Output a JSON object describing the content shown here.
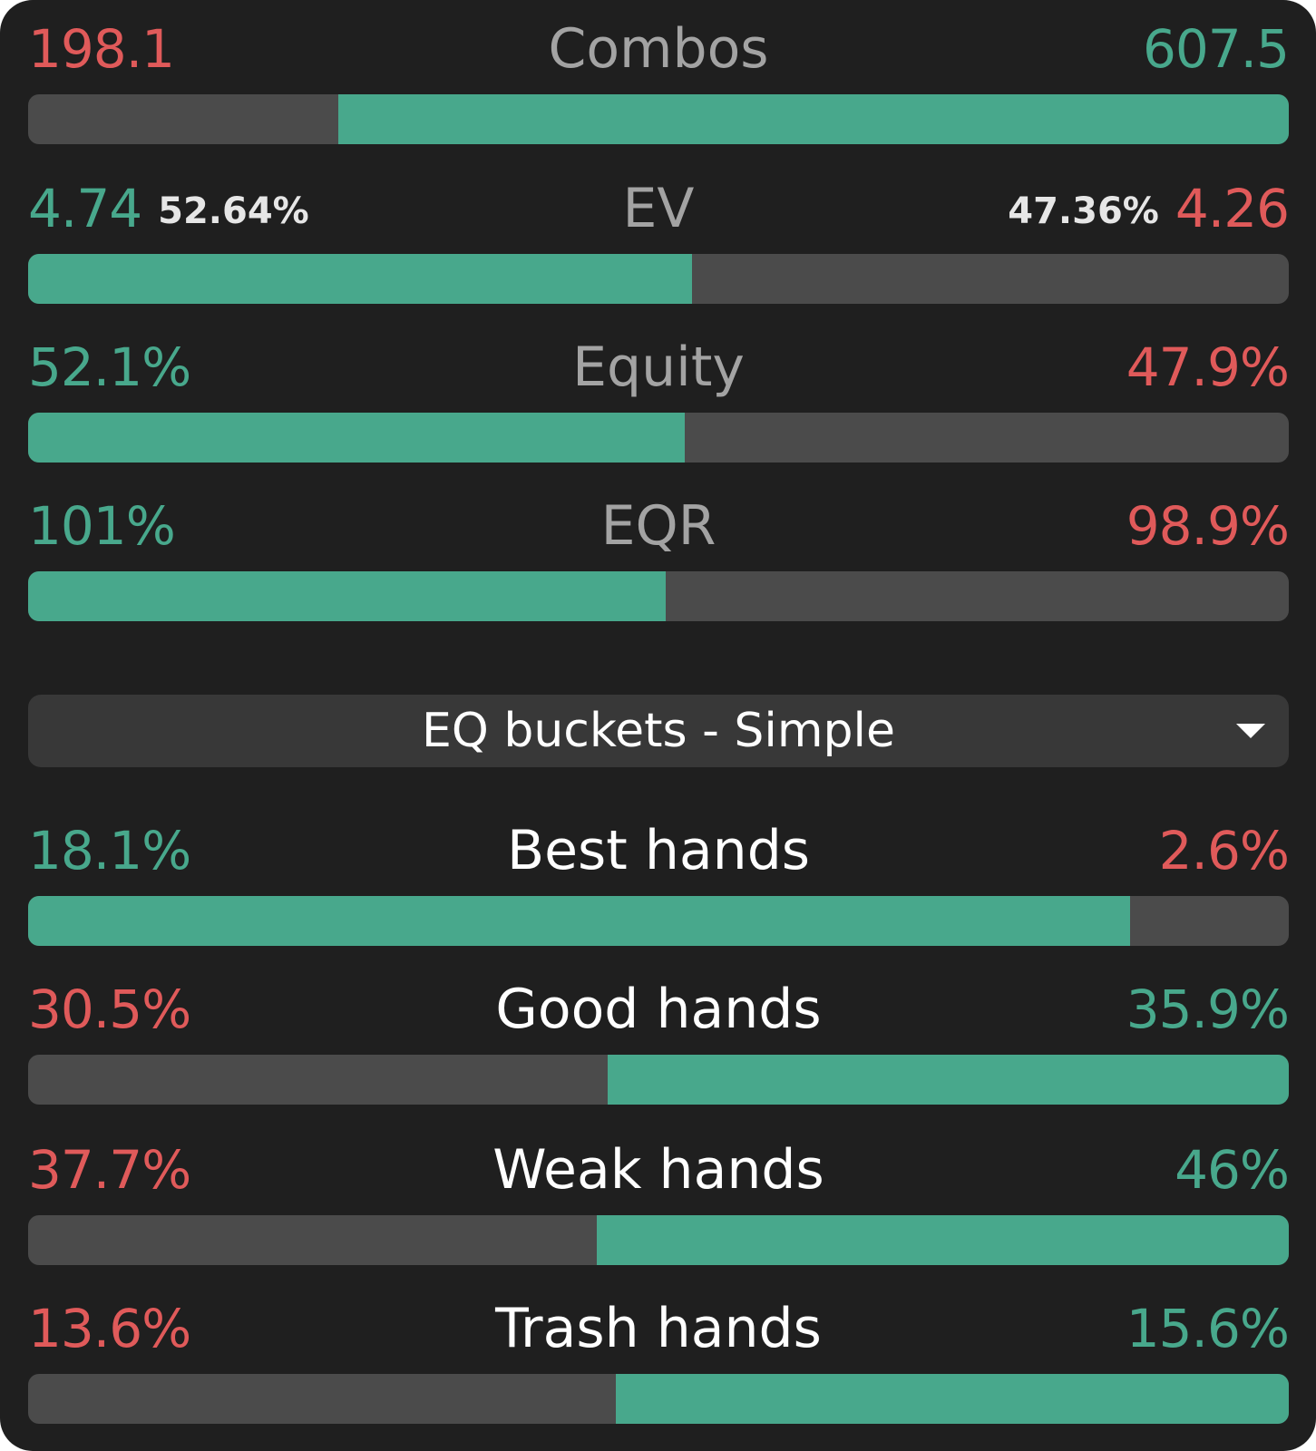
{
  "colors": {
    "green": "#48a88c",
    "red": "#e05a5a",
    "bar_bg": "#4b4b4b",
    "panel_bg": "#1f1f1f"
  },
  "stats": [
    {
      "title": "Combos",
      "left": "198.1",
      "right": "607.5",
      "left_color": "red",
      "right_color": "green",
      "fill_side": "right",
      "fill_fraction": 0.754
    },
    {
      "title": "EV",
      "left": "4.74",
      "left_pct": "52.64%",
      "right": "4.26",
      "right_pct": "47.36%",
      "left_color": "green",
      "right_color": "red",
      "fill_side": "left",
      "fill_fraction": 0.5264
    },
    {
      "title": "Equity",
      "left": "52.1%",
      "right": "47.9%",
      "left_color": "green",
      "right_color": "red",
      "fill_side": "left",
      "fill_fraction": 0.521
    },
    {
      "title": "EQR",
      "left": "101%",
      "right": "98.9%",
      "left_color": "green",
      "right_color": "red",
      "fill_side": "left",
      "fill_fraction": 0.506
    }
  ],
  "dropdown": {
    "label": "EQ buckets - Simple",
    "icon": "caret-down-icon"
  },
  "buckets": [
    {
      "title": "Best hands",
      "left": "18.1%",
      "right": "2.6%",
      "left_color": "green",
      "right_color": "red",
      "fill_side": "left",
      "fill_fraction": 0.874
    },
    {
      "title": "Good hands",
      "left": "30.5%",
      "right": "35.9%",
      "left_color": "red",
      "right_color": "green",
      "fill_side": "right",
      "fill_fraction": 0.54
    },
    {
      "title": "Weak hands",
      "left": "37.7%",
      "right": "46%",
      "left_color": "red",
      "right_color": "green",
      "fill_side": "right",
      "fill_fraction": 0.549
    },
    {
      "title": "Trash hands",
      "left": "13.6%",
      "right": "15.6%",
      "left_color": "red",
      "right_color": "green",
      "fill_side": "right",
      "fill_fraction": 0.534
    }
  ]
}
